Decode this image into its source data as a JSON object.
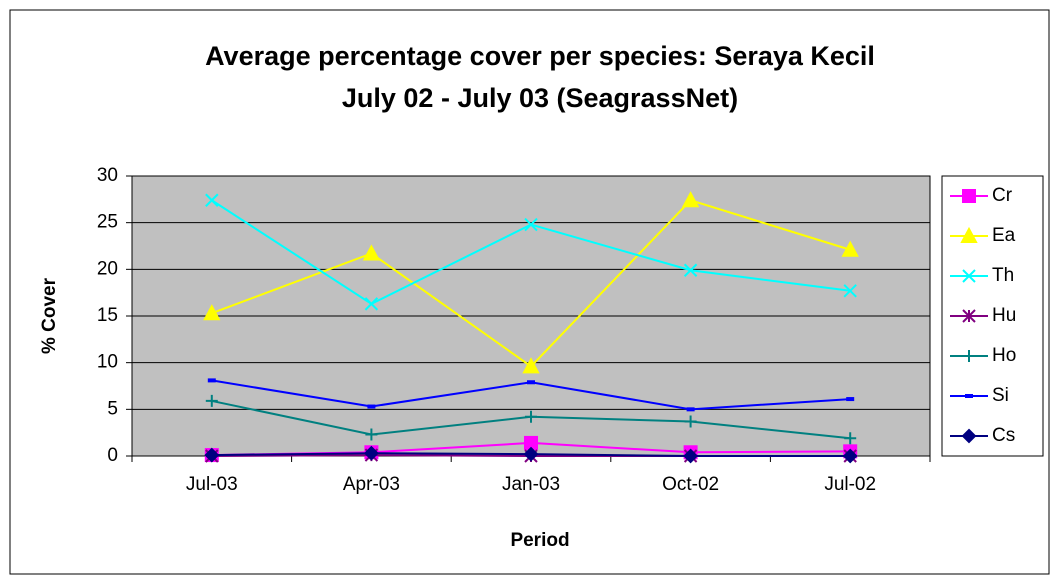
{
  "chart_data": {
    "type": "line",
    "title": "Average percentage cover per species: Seraya Kecil",
    "subtitle": "July 02 - July 03  (SeagrassNet)",
    "x_label": "Period",
    "y_label": "% Cover",
    "categories": [
      "Jul-03",
      "Apr-03",
      "Jan-03",
      "Oct-02",
      "Jul-02"
    ],
    "ylim": [
      0,
      30
    ],
    "yticks": [
      0,
      5,
      10,
      15,
      20,
      25,
      30
    ],
    "grid": true,
    "legend": "right",
    "series": [
      {
        "name": "Cr",
        "color": "#ff00ff",
        "marker": "square",
        "values": [
          0.1,
          0.4,
          1.4,
          0.4,
          0.5
        ]
      },
      {
        "name": "Ea",
        "color": "#ffff00",
        "marker": "triangle",
        "values": [
          15.3,
          21.7,
          9.6,
          27.4,
          22.1
        ]
      },
      {
        "name": "Th",
        "color": "#00ffff",
        "marker": "x",
        "values": [
          27.4,
          16.3,
          24.8,
          19.9,
          17.7
        ]
      },
      {
        "name": "Hu",
        "color": "#800080",
        "marker": "star",
        "values": [
          0,
          0.1,
          0,
          0,
          0
        ]
      },
      {
        "name": "Ho",
        "color": "#008080",
        "marker": "plus",
        "values": [
          5.9,
          2.3,
          4.2,
          3.7,
          1.9
        ]
      },
      {
        "name": "Si",
        "color": "#0000ff",
        "marker": "dash",
        "values": [
          8.1,
          5.3,
          7.9,
          5.0,
          6.1
        ]
      },
      {
        "name": "Cs",
        "color": "#000080",
        "marker": "diamond",
        "values": [
          0.1,
          0.3,
          0.2,
          0,
          0
        ]
      }
    ]
  }
}
